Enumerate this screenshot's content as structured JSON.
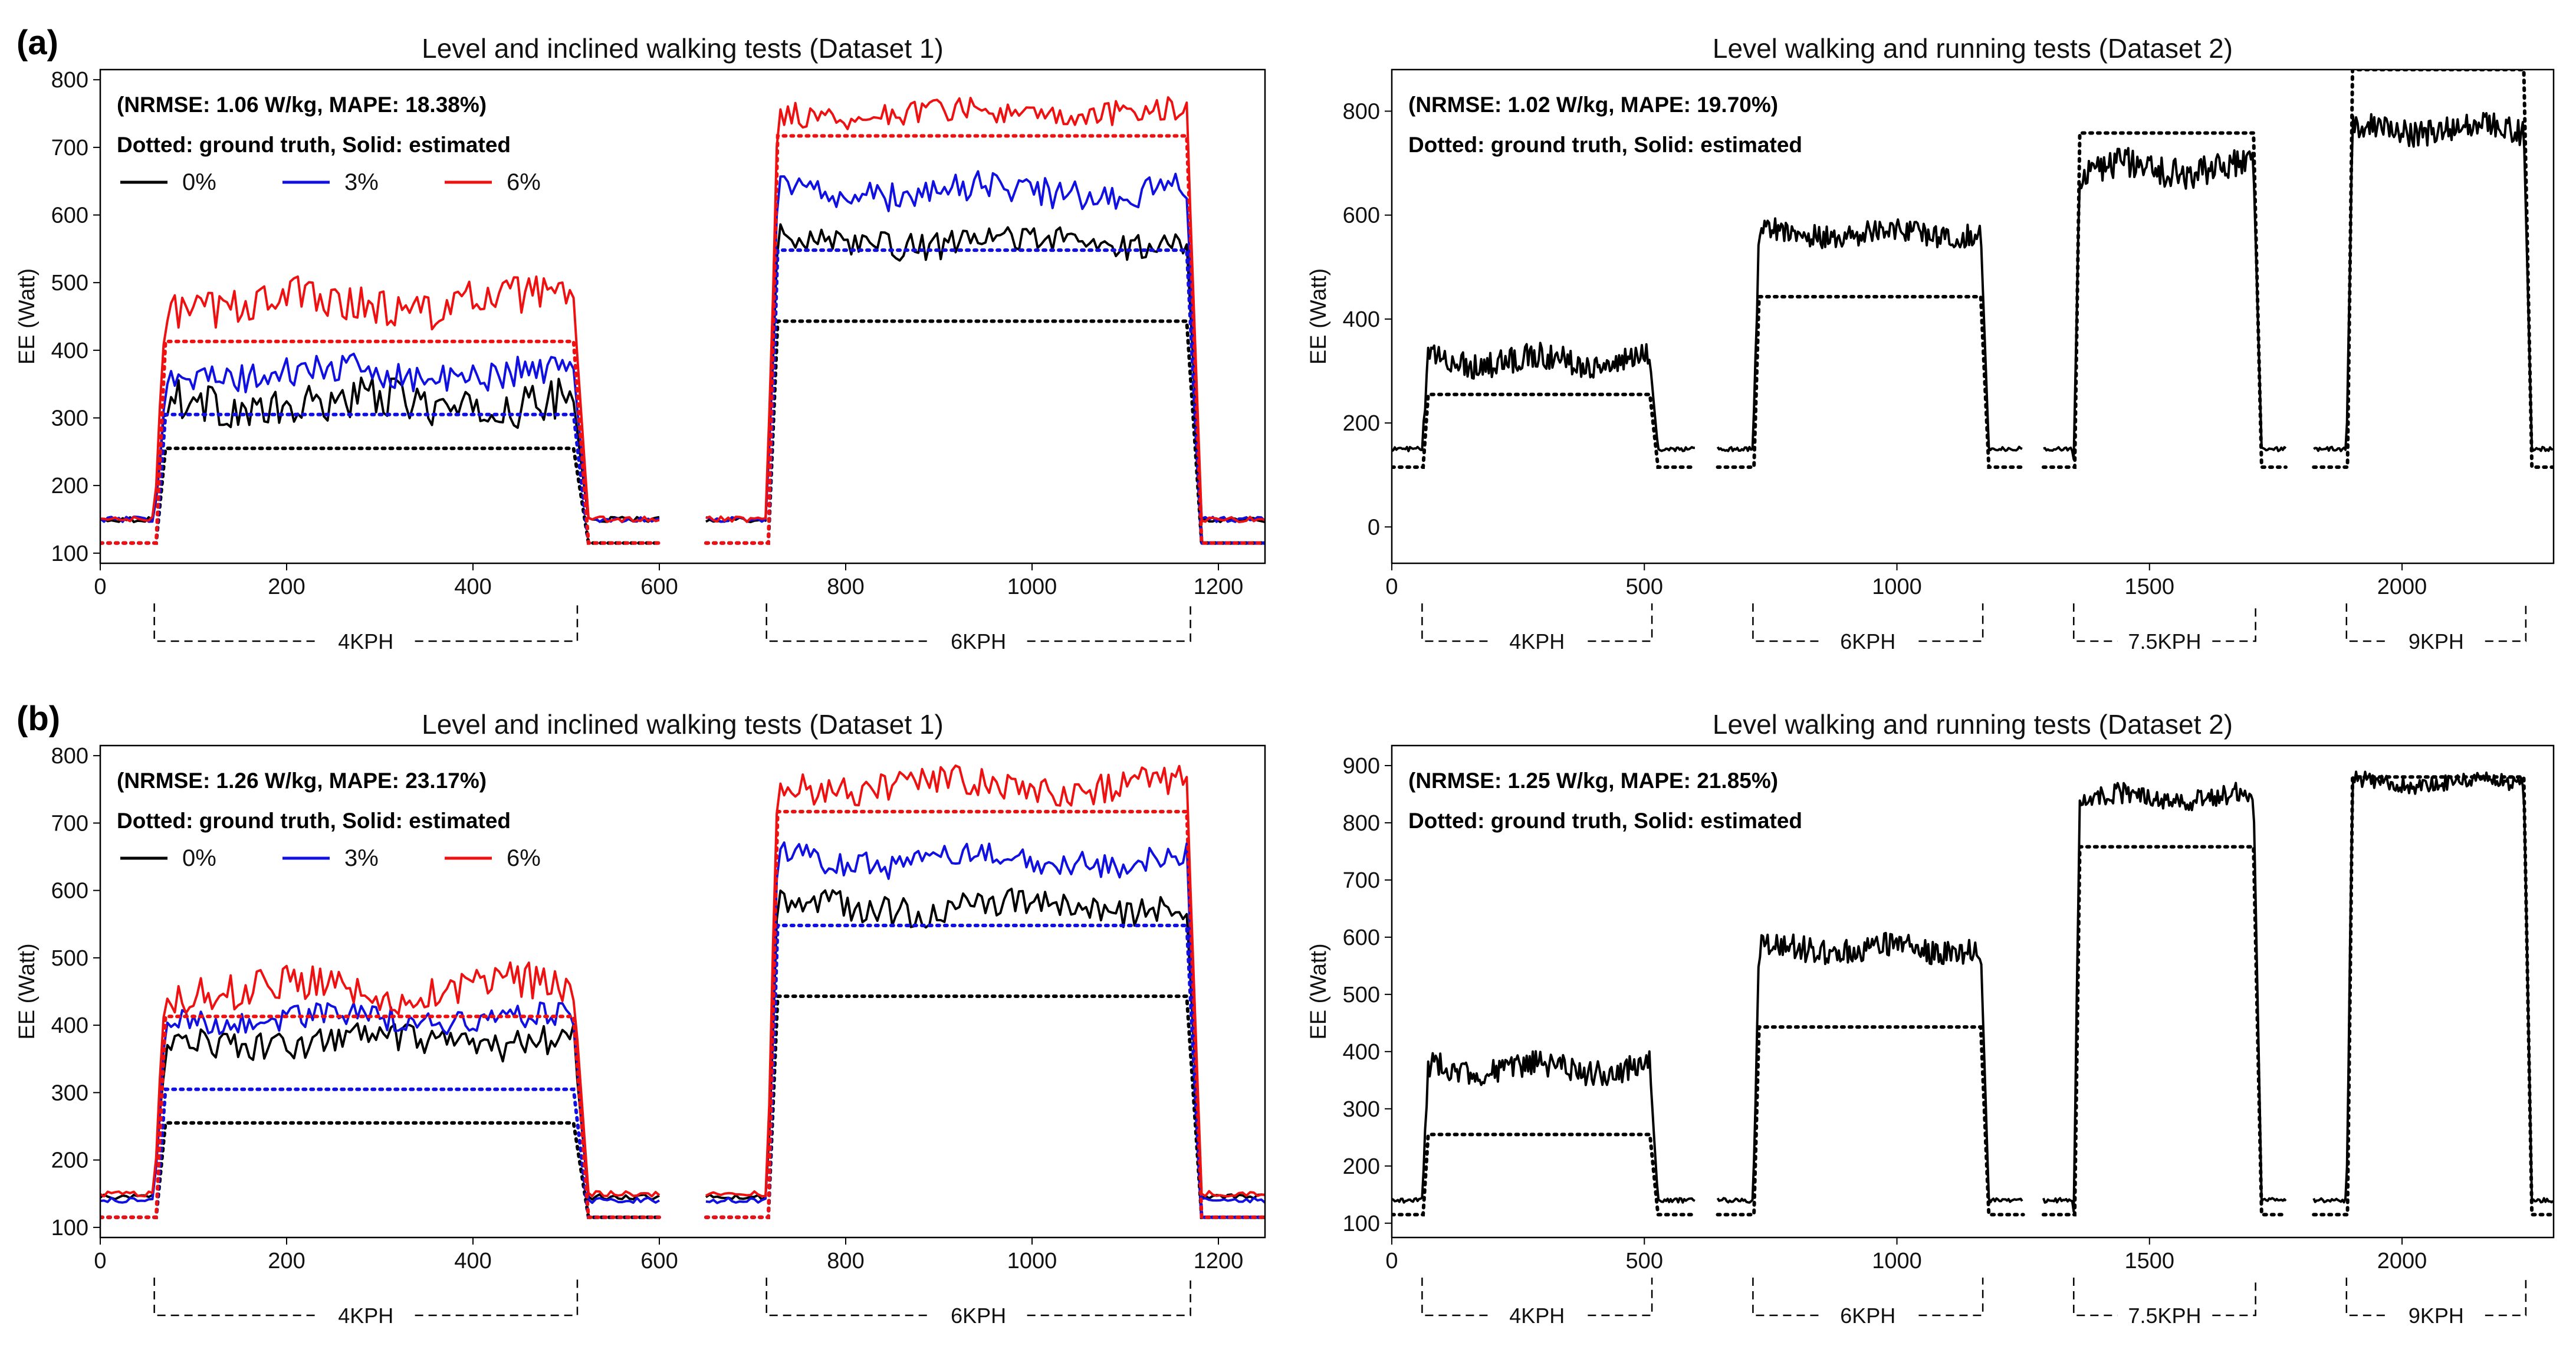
{
  "figure": {
    "row_labels": [
      "(a)",
      "(b)"
    ]
  },
  "chart_data": [
    {
      "type": "line",
      "id": "a-left",
      "row": "(a)",
      "title": "Level and inclined walking tests (Dataset 1)",
      "xlabel": "",
      "ylabel": "EE (Watt)",
      "xlim": [
        0,
        1250
      ],
      "ylim": [
        85,
        815
      ],
      "xticks": [
        0,
        200,
        400,
        600,
        800,
        1000,
        1200
      ],
      "yticks": [
        100,
        200,
        300,
        400,
        500,
        600,
        700,
        800
      ],
      "annotations": [
        "(NRMSE: 1.06 W/kg, MAPE: 18.38%)",
        "Dotted: ground truth, Solid: estimated"
      ],
      "legend": {
        "placement": "top-left",
        "entries": [
          {
            "label": "0%",
            "color": "#000000"
          },
          {
            "label": "3%",
            "color": "#1010e0"
          },
          {
            "label": "6%",
            "color": "#ee1111"
          }
        ]
      },
      "brackets": [
        {
          "label": "4KPH",
          "from": 58,
          "to": 512
        },
        {
          "label": "6KPH",
          "from": 715,
          "to": 1170
        }
      ],
      "segments": [
        {
          "from": 0,
          "to": 600
        },
        {
          "from": 650,
          "to": 1250
        }
      ],
      "series": [
        {
          "name": "0%",
          "color": "#000000",
          "baseline": 150,
          "gt": [
            255,
            443
          ],
          "est": [
            320,
            560
          ],
          "noise": [
            30,
            20
          ]
        },
        {
          "name": "3%",
          "color": "#1010e0",
          "baseline": 150,
          "gt": [
            305,
            548
          ],
          "est": [
            365,
            635
          ],
          "noise": [
            22,
            22
          ]
        },
        {
          "name": "6%",
          "color": "#ee1111",
          "baseline": 150,
          "gt": [
            413,
            717
          ],
          "est": [
            470,
            750
          ],
          "noise": [
            30,
            18
          ]
        }
      ]
    },
    {
      "type": "line",
      "id": "a-right",
      "row": "(a)",
      "title": "Level walking and running tests (Dataset 2)",
      "xlabel": "",
      "ylabel": "EE (Watt)",
      "xlim": [
        0,
        2300
      ],
      "ylim": [
        -70,
        880
      ],
      "xticks": [
        0,
        500,
        1000,
        1500,
        2000
      ],
      "yticks": [
        0,
        200,
        400,
        600,
        800
      ],
      "annotations": [
        "(NRMSE: 1.02 W/kg, MAPE: 19.70%)",
        "Dotted: ground truth, Solid: estimated"
      ],
      "brackets": [
        {
          "label": "4KPH",
          "from": 60,
          "to": 515
        },
        {
          "label": "6KPH",
          "from": 715,
          "to": 1170
        },
        {
          "label": "7.5KPH",
          "from": 1350,
          "to": 1710
        },
        {
          "label": "9KPH",
          "from": 1890,
          "to": 2245
        }
      ],
      "segments": [
        {
          "from": 0,
          "to": 600
        },
        {
          "from": 645,
          "to": 1250
        },
        {
          "from": 1290,
          "to": 1770
        },
        {
          "from": 1825,
          "to": 2300
        }
      ],
      "series": [
        {
          "name": "estimated",
          "color": "#000000",
          "baseline": 150,
          "gt": [
            255,
            443,
            758,
            880
          ],
          "est": [
            320,
            565,
            690,
            765
          ],
          "noise": [
            25,
            22,
            30,
            25
          ]
        }
      ]
    },
    {
      "type": "line",
      "id": "b-left",
      "row": "(b)",
      "title": "Level and inclined walking tests (Dataset 1)",
      "xlabel": "",
      "ylabel": "EE (Watt)",
      "xlim": [
        0,
        1250
      ],
      "ylim": [
        85,
        815
      ],
      "xticks": [
        0,
        200,
        400,
        600,
        800,
        1000,
        1200
      ],
      "yticks": [
        100,
        200,
        300,
        400,
        500,
        600,
        700,
        800
      ],
      "annotations": [
        "(NRMSE: 1.26 W/kg, MAPE: 23.17%)",
        "Dotted: ground truth, Solid: estimated"
      ],
      "legend": {
        "placement": "top-left",
        "entries": [
          {
            "label": "0%",
            "color": "#000000"
          },
          {
            "label": "3%",
            "color": "#1010e0"
          },
          {
            "label": "6%",
            "color": "#ee1111"
          }
        ]
      },
      "brackets": [
        {
          "label": "4KPH",
          "from": 58,
          "to": 512
        },
        {
          "label": "6KPH",
          "from": 715,
          "to": 1170
        }
      ],
      "segments": [
        {
          "from": 0,
          "to": 600
        },
        {
          "from": 650,
          "to": 1250
        }
      ],
      "series": [
        {
          "name": "0%",
          "color": "#000000",
          "baseline": 145,
          "gt": [
            255,
            443
          ],
          "est": [
            375,
            575
          ],
          "noise": [
            22,
            22
          ]
        },
        {
          "name": "3%",
          "color": "#1010e0",
          "baseline": 140,
          "gt": [
            305,
            548
          ],
          "est": [
            410,
            645
          ],
          "noise": [
            18,
            20
          ]
        },
        {
          "name": "6%",
          "color": "#ee1111",
          "baseline": 150,
          "gt": [
            413,
            717
          ],
          "est": [
            455,
            755
          ],
          "noise": [
            28,
            22
          ]
        }
      ]
    },
    {
      "type": "line",
      "id": "b-right",
      "row": "(b)",
      "title": "Level walking and running tests (Dataset 2)",
      "xlabel": "",
      "ylabel": "EE (Watt)",
      "xlim": [
        0,
        2300
      ],
      "ylim": [
        75,
        935
      ],
      "xticks": [
        0,
        500,
        1000,
        1500,
        2000
      ],
      "yticks": [
        100,
        200,
        300,
        400,
        500,
        600,
        700,
        800,
        900
      ],
      "annotations": [
        "(NRMSE: 1.25 W/kg, MAPE: 21.85%)",
        "Dotted: ground truth, Solid: estimated"
      ],
      "brackets": [
        {
          "label": "4KPH",
          "from": 60,
          "to": 515
        },
        {
          "label": "6KPH",
          "from": 715,
          "to": 1170
        },
        {
          "label": "7.5KPH",
          "from": 1350,
          "to": 1710
        },
        {
          "label": "9KPH",
          "from": 1890,
          "to": 2245
        }
      ],
      "segments": [
        {
          "from": 0,
          "to": 600
        },
        {
          "from": 645,
          "to": 1250
        },
        {
          "from": 1290,
          "to": 1770
        },
        {
          "from": 1825,
          "to": 2300
        }
      ],
      "series": [
        {
          "name": "estimated",
          "color": "#000000",
          "baseline": 140,
          "gt": [
            255,
            443,
            758,
            880
          ],
          "est": [
            370,
            580,
            845,
            870
          ],
          "noise": [
            22,
            22,
            18,
            14
          ]
        }
      ]
    }
  ]
}
